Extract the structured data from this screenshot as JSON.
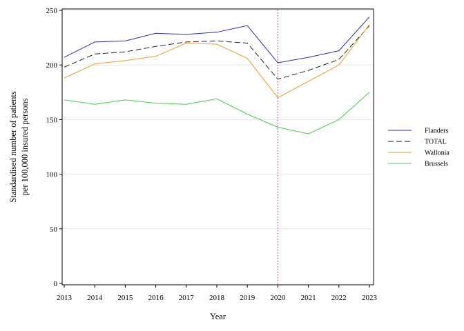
{
  "chart_data": {
    "type": "line",
    "xlabel": "Year",
    "ylabel_lines": [
      "Standardised number of patients",
      "per 100,000 insured persons"
    ],
    "x": [
      2013,
      2014,
      2015,
      2016,
      2017,
      2018,
      2019,
      2020,
      2021,
      2022,
      2023
    ],
    "ylim": [
      0,
      250
    ],
    "yticks": [
      0,
      50,
      100,
      150,
      200,
      250
    ],
    "grid": "horizontal",
    "legend_position": "right",
    "vertical_reference_line": {
      "x": 2020,
      "color": "#b05a9a",
      "style": "dotted"
    },
    "series": [
      {
        "name": "Flanders",
        "color": "#2a2ad8",
        "style": "solid",
        "values": [
          207,
          221,
          222,
          229,
          228,
          230,
          236,
          202,
          207,
          213,
          244
        ]
      },
      {
        "name": "TOTAL",
        "color": "#222222",
        "style": "dashed",
        "values": [
          198,
          210,
          212,
          217,
          221,
          222,
          220,
          187,
          195,
          205,
          236
        ]
      },
      {
        "name": "Wallonia",
        "color": "#f59a25",
        "style": "solid",
        "values": [
          188,
          201,
          204,
          208,
          220,
          219,
          206,
          170,
          185,
          200,
          237
        ]
      },
      {
        "name": "Brussels",
        "color": "#4ccc4c",
        "style": "solid",
        "values": [
          168,
          164,
          168,
          165,
          164,
          169,
          155,
          143,
          137,
          150,
          175
        ]
      }
    ]
  }
}
